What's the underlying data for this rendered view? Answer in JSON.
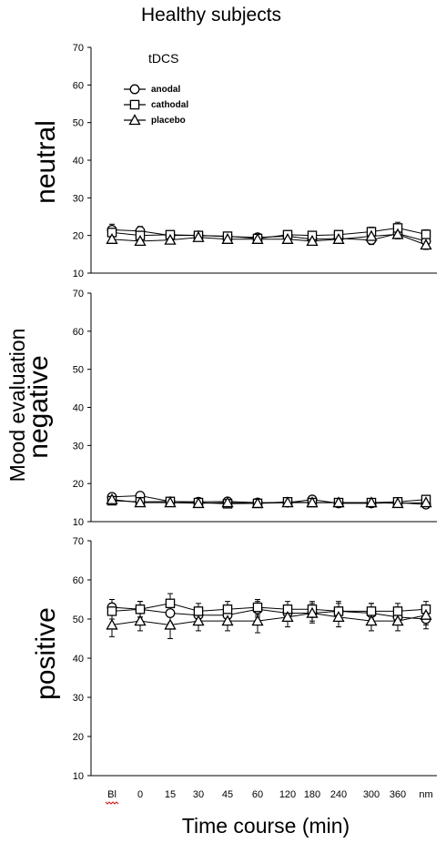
{
  "chart_data": {
    "type": "line",
    "title": "Healthy subjects",
    "ylabel": "Mood evaluation",
    "xlabel": "Time course (min)",
    "categories": [
      "Bl",
      "0",
      "15",
      "30",
      "45",
      "60",
      "120",
      "180",
      "240",
      "300",
      "360",
      "nm"
    ],
    "legend": {
      "title": "tDCS",
      "entries": [
        "anodal",
        "cathodal",
        "placebo"
      ],
      "placement": "top-left"
    },
    "panels": [
      {
        "label": "neutral",
        "ylim": [
          10,
          70
        ],
        "yticks": [
          10,
          20,
          30,
          40,
          50,
          60,
          70
        ],
        "series": [
          {
            "name": "anodal",
            "marker": "circle",
            "values": [
              21.5,
              21.2,
              20.0,
              20.0,
              19.7,
              19.5,
              19.8,
              19.0,
              19.2,
              18.8,
              20.5,
              18.5
            ],
            "errors": [
              1.5,
              1.2,
              1.0,
              1.0,
              1.0,
              0.8,
              1.0,
              1.0,
              1.0,
              1.2,
              1.2,
              1.2
            ]
          },
          {
            "name": "cathodal",
            "marker": "square",
            "values": [
              20.8,
              20.0,
              20.2,
              20.0,
              19.8,
              19.2,
              20.2,
              20.0,
              20.2,
              21.0,
              22.0,
              20.3
            ],
            "errors": [
              1.0,
              1.0,
              1.0,
              1.0,
              1.0,
              0.8,
              1.0,
              1.0,
              1.0,
              1.2,
              1.5,
              1.2
            ]
          },
          {
            "name": "placebo",
            "marker": "triangle",
            "values": [
              19.0,
              18.5,
              18.8,
              19.5,
              19.0,
              19.0,
              19.0,
              18.5,
              19.0,
              19.8,
              20.3,
              17.5
            ],
            "errors": [
              1.0,
              1.0,
              1.0,
              1.0,
              1.0,
              0.8,
              1.0,
              1.0,
              1.0,
              1.0,
              1.2,
              1.2
            ]
          }
        ]
      },
      {
        "label": "negative",
        "ylim": [
          10,
          70
        ],
        "yticks": [
          10,
          20,
          30,
          40,
          50,
          60,
          70
        ],
        "series": [
          {
            "name": "anodal",
            "marker": "circle",
            "values": [
              16.5,
              16.8,
              15.3,
              15.2,
              15.3,
              15.0,
              15.0,
              15.8,
              14.8,
              14.8,
              15.0,
              14.5
            ],
            "errors": [
              1.0,
              0.8,
              0.6,
              0.6,
              0.6,
              0.6,
              0.6,
              0.6,
              0.6,
              0.6,
              0.6,
              0.6
            ]
          },
          {
            "name": "cathodal",
            "marker": "square",
            "values": [
              15.5,
              15.2,
              15.3,
              15.0,
              14.7,
              14.8,
              15.2,
              15.0,
              15.0,
              15.0,
              15.2,
              15.8
            ],
            "errors": [
              1.0,
              0.8,
              0.6,
              0.6,
              0.6,
              0.6,
              0.6,
              0.6,
              0.6,
              0.6,
              0.6,
              0.6
            ]
          },
          {
            "name": "placebo",
            "marker": "triangle",
            "values": [
              15.8,
              15.0,
              15.0,
              14.8,
              15.0,
              14.8,
              15.0,
              15.0,
              15.0,
              15.0,
              14.8,
              15.0
            ],
            "errors": [
              0.8,
              0.6,
              0.6,
              0.6,
              0.6,
              0.6,
              0.6,
              0.6,
              0.6,
              0.6,
              0.6,
              0.6
            ]
          }
        ]
      },
      {
        "label": "positive",
        "ylim": [
          10,
          70
        ],
        "yticks": [
          10,
          20,
          30,
          40,
          50,
          60,
          70
        ],
        "series": [
          {
            "name": "anodal",
            "marker": "circle",
            "values": [
              53.0,
              52.5,
              51.5,
              51.0,
              51.0,
              52.5,
              51.5,
              51.5,
              52.0,
              51.5,
              50.5,
              50.0
            ],
            "errors": [
              2.0,
              2.0,
              2.5,
              2.0,
              2.0,
              2.0,
              2.0,
              2.0,
              2.0,
              2.5,
              2.0,
              2.5
            ]
          },
          {
            "name": "cathodal",
            "marker": "square",
            "values": [
              52.0,
              52.5,
              54.0,
              52.0,
              52.5,
              53.0,
              52.5,
              52.5,
              52.0,
              52.0,
              52.0,
              52.5
            ],
            "errors": [
              2.0,
              2.0,
              2.5,
              2.0,
              2.0,
              2.0,
              2.0,
              2.0,
              2.5,
              2.0,
              2.0,
              2.0
            ]
          },
          {
            "name": "placebo",
            "marker": "triangle",
            "values": [
              48.5,
              49.5,
              48.5,
              49.5,
              49.5,
              49.5,
              50.5,
              51.5,
              50.5,
              49.5,
              49.5,
              51.0
            ],
            "errors": [
              3.0,
              2.5,
              3.5,
              2.5,
              2.5,
              3.0,
              2.5,
              2.5,
              2.5,
              2.5,
              2.5,
              2.5
            ]
          }
        ]
      }
    ]
  }
}
